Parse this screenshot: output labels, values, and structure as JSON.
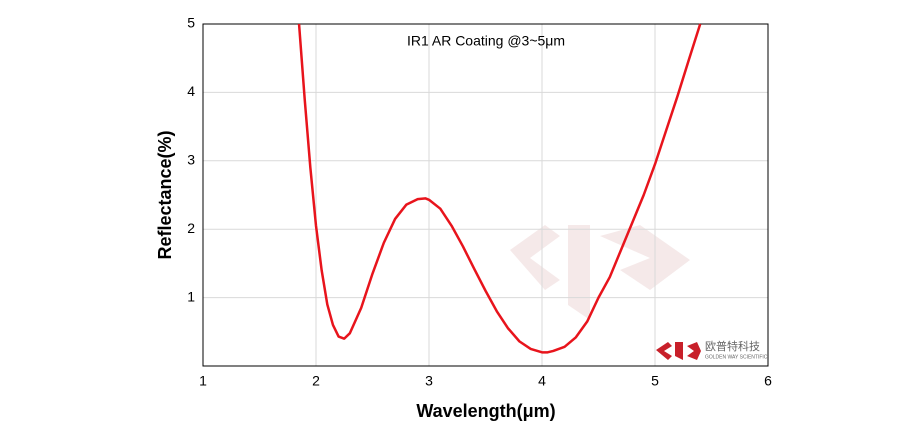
{
  "chart_data": {
    "type": "line",
    "title": "IR1 AR Coating @3~5μm",
    "x_label": "Wavelength(μm)",
    "y_label": "Reflectance(%)",
    "x": [
      1.85,
      1.9,
      1.95,
      2.0,
      2.05,
      2.1,
      2.15,
      2.2,
      2.25,
      2.3,
      2.4,
      2.5,
      2.6,
      2.7,
      2.8,
      2.9,
      2.97,
      3.0,
      3.1,
      3.2,
      3.3,
      3.4,
      3.5,
      3.6,
      3.7,
      3.8,
      3.9,
      4.0,
      4.05,
      4.1,
      4.2,
      4.3,
      4.4,
      4.5,
      4.6,
      4.7,
      4.8,
      4.9,
      5.0,
      5.1,
      5.2,
      5.3,
      5.4
    ],
    "values": [
      5.0,
      3.9,
      2.9,
      2.05,
      1.4,
      0.9,
      0.6,
      0.43,
      0.4,
      0.48,
      0.85,
      1.35,
      1.8,
      2.15,
      2.36,
      2.44,
      2.45,
      2.43,
      2.3,
      2.05,
      1.75,
      1.42,
      1.1,
      0.8,
      0.55,
      0.36,
      0.25,
      0.2,
      0.2,
      0.22,
      0.28,
      0.42,
      0.65,
      1.0,
      1.3,
      1.7,
      2.1,
      2.5,
      2.95,
      3.45,
      3.95,
      4.48,
      5.0
    ],
    "color": "#e8141c",
    "xlim": [
      1,
      6
    ],
    "xticks": [
      1,
      2,
      3,
      4,
      5,
      6
    ],
    "ylim": [
      0,
      5
    ],
    "yticks": [
      1,
      2,
      3,
      4,
      5
    ],
    "grid": true,
    "watermark": {
      "text": "欧普特科技",
      "subtext": "GOLDEN WAY SCIENTIFIC"
    }
  }
}
